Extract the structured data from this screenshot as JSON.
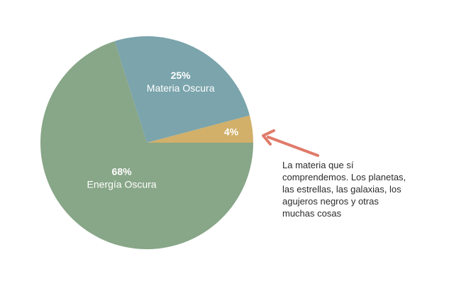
{
  "chart_data": {
    "type": "pie",
    "slices": [
      {
        "label": "25%",
        "name": "Materia Oscura",
        "value": 25,
        "color": "#7ba4ac"
      },
      {
        "label": "4%",
        "name": "",
        "value": 4,
        "color": "#d2b06a"
      },
      {
        "label": "68%",
        "name": "Energía Oscura",
        "value": 68,
        "color": "#88a688"
      }
    ],
    "annotation": {
      "text": "La materia que sí comprendemos. Los planetas, las estrellas, las galaxias, los agujeros negros y otras muchas cosas",
      "arrow_color": "#e07b6a"
    }
  }
}
